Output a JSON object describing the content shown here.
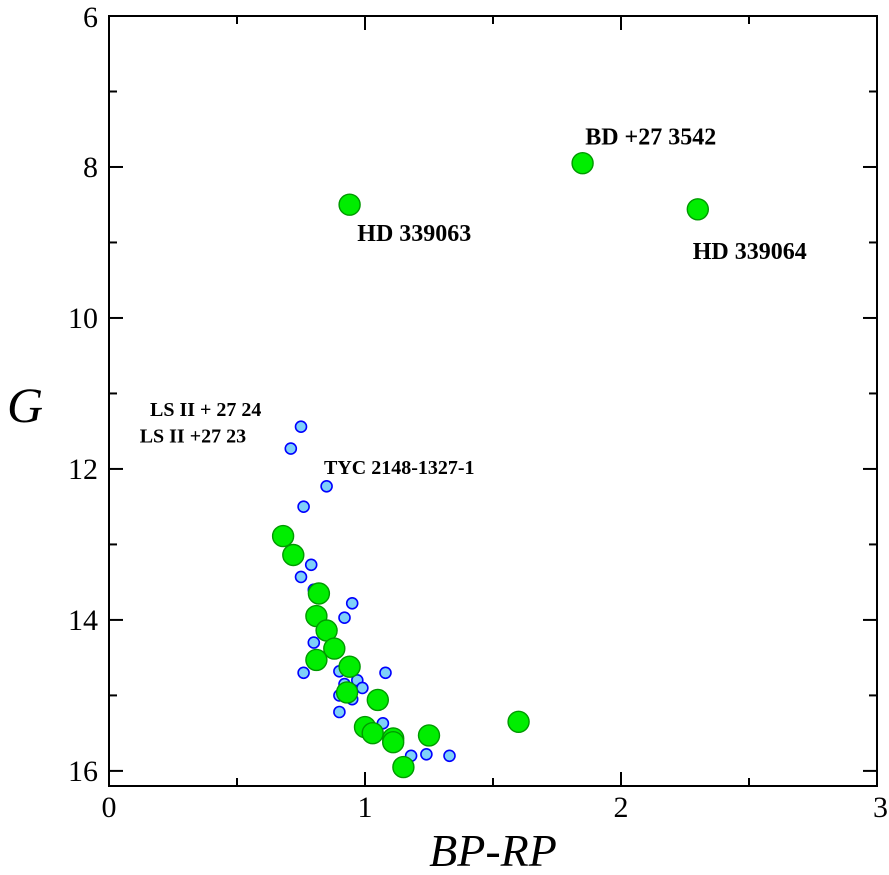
{
  "chart_data": {
    "type": "scatter",
    "title": "",
    "xlabel": "BP-RP",
    "ylabel": "G",
    "xlim": [
      0,
      3
    ],
    "ylim": [
      16.2,
      6
    ],
    "y_inverted": true,
    "x_ticks": [
      "0",
      "1",
      "2",
      "3"
    ],
    "y_ticks": [
      "6",
      "8",
      "10",
      "12",
      "14",
      "16"
    ],
    "grid": false,
    "series": [
      {
        "name": "small-blue",
        "color": "#7fd0f8",
        "edge_color": "#0000ff",
        "points": [
          [
            0.75,
            11.44
          ],
          [
            0.71,
            11.73
          ],
          [
            0.85,
            12.23
          ],
          [
            0.76,
            12.5
          ],
          [
            0.79,
            13.27
          ],
          [
            0.75,
            13.43
          ],
          [
            0.8,
            13.6
          ],
          [
            0.95,
            13.78
          ],
          [
            0.92,
            13.97
          ],
          [
            0.8,
            14.3
          ],
          [
            0.76,
            14.7
          ],
          [
            0.9,
            14.68
          ],
          [
            1.08,
            14.7
          ],
          [
            0.92,
            14.85
          ],
          [
            0.97,
            14.8
          ],
          [
            0.99,
            14.9
          ],
          [
            0.9,
            15.0
          ],
          [
            0.95,
            15.05
          ],
          [
            0.9,
            15.22
          ],
          [
            1.07,
            15.37
          ],
          [
            1.18,
            15.8
          ],
          [
            1.24,
            15.78
          ],
          [
            1.33,
            15.8
          ]
        ]
      },
      {
        "name": "large-green",
        "color": "#00ee00",
        "edge_color": "#009900",
        "points": [
          [
            0.94,
            8.5
          ],
          [
            1.85,
            7.95
          ],
          [
            2.3,
            8.56
          ],
          [
            0.68,
            12.89
          ],
          [
            0.72,
            13.14
          ],
          [
            0.82,
            13.65
          ],
          [
            0.81,
            13.95
          ],
          [
            0.85,
            14.14
          ],
          [
            0.88,
            14.38
          ],
          [
            0.81,
            14.53
          ],
          [
            0.94,
            14.62
          ],
          [
            0.93,
            14.96
          ],
          [
            1.05,
            15.06
          ],
          [
            1.6,
            15.35
          ],
          [
            1.0,
            15.42
          ],
          [
            1.03,
            15.5
          ],
          [
            1.25,
            15.53
          ],
          [
            1.11,
            15.57
          ],
          [
            1.11,
            15.62
          ],
          [
            1.15,
            15.95
          ]
        ]
      }
    ],
    "annotations": [
      {
        "text": "BD +27 3542",
        "x": 1.86,
        "y": 7.7
      },
      {
        "text": "HD 339063",
        "x": 0.97,
        "y": 8.98
      },
      {
        "text": "HD 339064",
        "x": 2.28,
        "y": 9.22
      },
      {
        "text": "LS II + 27 24",
        "x": 0.16,
        "y": 11.3
      },
      {
        "text": "LS II +27 23",
        "x": 0.12,
        "y": 11.65
      },
      {
        "text": "TYC 2148-1327-1",
        "x": 0.84,
        "y": 12.07
      }
    ]
  }
}
